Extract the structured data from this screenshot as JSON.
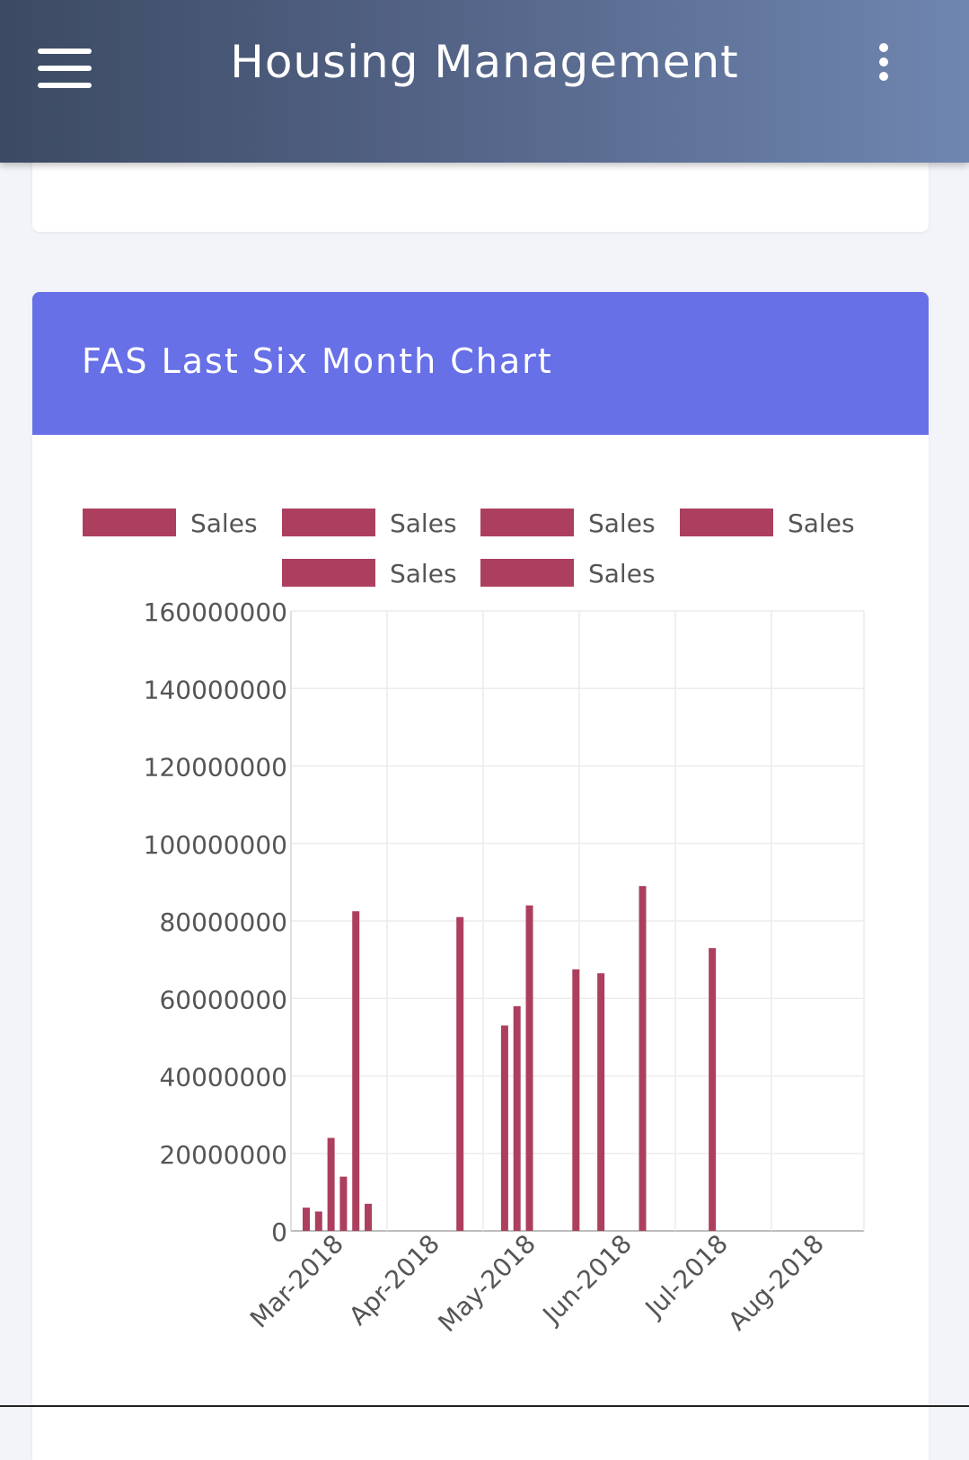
{
  "app": {
    "title": "Housing Management"
  },
  "card": {
    "title": "FAS Last Six Month Chart"
  },
  "colors": {
    "bar": "#ad3f5e",
    "header": "#6770e6"
  },
  "icons": {
    "menu": "hamburger-icon",
    "more": "more-vert-icon"
  },
  "chart_data": {
    "type": "bar",
    "legend_position": "top",
    "grid": true,
    "ylim": [
      0,
      160000000
    ],
    "y_ticks": [
      "0",
      "20000000",
      "40000000",
      "60000000",
      "80000000",
      "100000000",
      "120000000",
      "140000000",
      "160000000"
    ],
    "x_ticks": [
      "Mar-2018",
      "Apr-2018",
      "May-2018",
      "Jun-2018",
      "Jul-2018",
      "Aug-2018"
    ],
    "series": [
      {
        "name": "Sales",
        "points": [
          {
            "x": "2018-03-01",
            "y": 6000000
          },
          {
            "x": "2018-03-05",
            "y": 5000000
          },
          {
            "x": "2018-03-09",
            "y": 24000000
          },
          {
            "x": "2018-03-13",
            "y": 14000000
          },
          {
            "x": "2018-03-17",
            "y": 82500000
          },
          {
            "x": "2018-03-21",
            "y": 7000000
          }
        ]
      },
      {
        "name": "Sales",
        "points": [
          {
            "x": "2018-04-19",
            "y": 81000000
          }
        ]
      },
      {
        "name": "Sales",
        "points": [
          {
            "x": "2018-05-03",
            "y": 53000000
          },
          {
            "x": "2018-05-07",
            "y": 58000000
          },
          {
            "x": "2018-05-11",
            "y": 84000000
          }
        ]
      },
      {
        "name": "Sales",
        "points": [
          {
            "x": "2018-05-26",
            "y": 67500000
          },
          {
            "x": "2018-06-03",
            "y": 66500000
          }
        ]
      },
      {
        "name": "Sales",
        "points": [
          {
            "x": "2018-06-16",
            "y": 89000000
          }
        ]
      },
      {
        "name": "Sales",
        "points": [
          {
            "x": "2018-07-08",
            "y": 73000000
          }
        ]
      }
    ]
  }
}
